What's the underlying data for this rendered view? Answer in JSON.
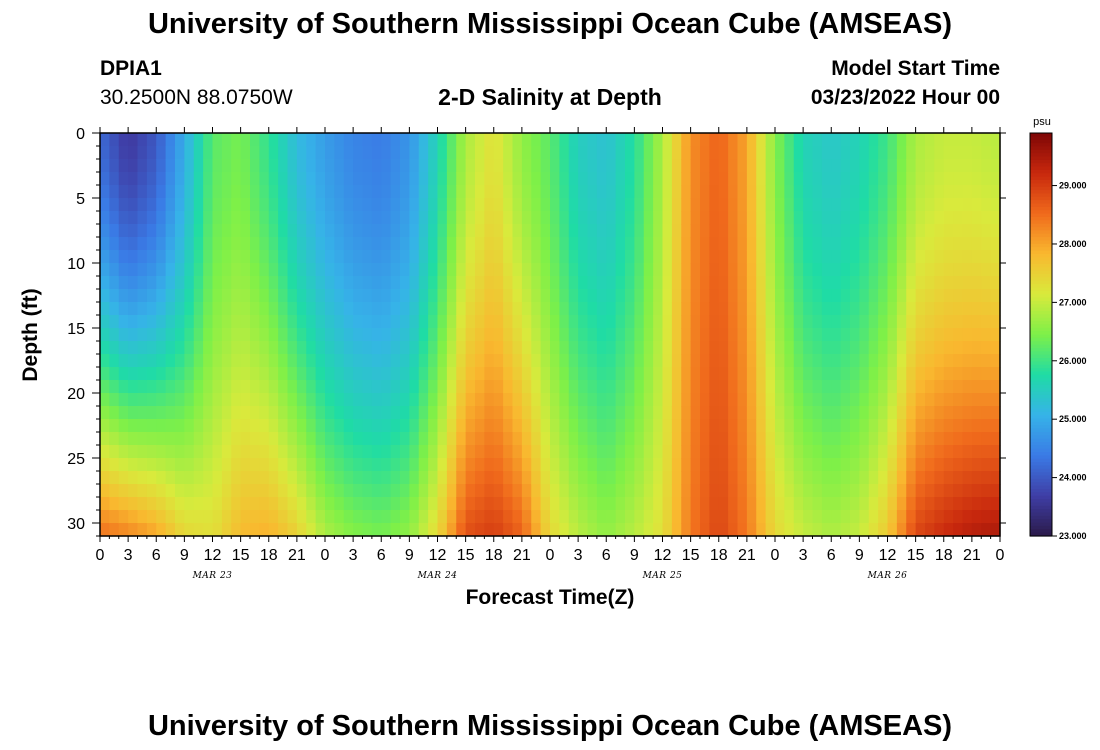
{
  "header": {
    "title": "University of Southern Mississippi Ocean Cube (AMSEAS)",
    "station_id": "DPIA1",
    "coords": "30.2500N  88.0750W",
    "chart_title": "2-D Salinity at Depth",
    "model_label": "Model Start Time",
    "model_time": "03/23/2022 Hour 00",
    "footer_title": "University of Southern Mississippi Ocean Cube (AMSEAS)"
  },
  "colors": {
    "scale": [
      "#2b1a4a",
      "#3f3ea6",
      "#3a7be6",
      "#36b3e8",
      "#1fdca5",
      "#7ef048",
      "#d9ea3c",
      "#f9b82f",
      "#f06a1c",
      "#c8280d",
      "#7e0606"
    ]
  },
  "chart_data": {
    "type": "heatmap",
    "title": "2-D Salinity at Depth",
    "xlabel": "Forecast Time(Z)",
    "ylabel": "Depth (ft)",
    "units": "psu",
    "xlim": [
      0,
      96
    ],
    "ylim": [
      0,
      31
    ],
    "x_tick_labels": [
      "0",
      "3",
      "6",
      "9",
      "12",
      "15",
      "18",
      "21",
      "0",
      "3",
      "6",
      "9",
      "12",
      "15",
      "18",
      "21",
      "0",
      "3",
      "6",
      "9",
      "12",
      "15",
      "18",
      "21",
      "0",
      "3",
      "6",
      "9",
      "12",
      "15",
      "18",
      "21",
      "0"
    ],
    "y_ticks": [
      0,
      5,
      10,
      15,
      20,
      25,
      30
    ],
    "date_labels": [
      {
        "label": "MAR 23",
        "hour": 12
      },
      {
        "label": "MAR 24",
        "hour": 36
      },
      {
        "label": "MAR 25",
        "hour": 60
      },
      {
        "label": "MAR 26",
        "hour": 84
      }
    ],
    "colorbar": {
      "min": 23.0,
      "max": 29.9,
      "ticks": [
        "23.000",
        "24.000",
        "25.000",
        "26.000",
        "27.000",
        "28.000",
        "29.000"
      ],
      "units": "psu"
    },
    "profiles": [
      {
        "hour": 0,
        "surface": 24.2,
        "bottom": 28.5
      },
      {
        "hour": 3,
        "surface": 23.6,
        "bottom": 28.3
      },
      {
        "hour": 6,
        "surface": 24.0,
        "bottom": 28.0
      },
      {
        "hour": 9,
        "surface": 25.0,
        "bottom": 27.4
      },
      {
        "hour": 12,
        "surface": 26.2,
        "bottom": 27.3
      },
      {
        "hour": 15,
        "surface": 26.4,
        "bottom": 27.8
      },
      {
        "hour": 18,
        "surface": 25.9,
        "bottom": 27.9
      },
      {
        "hour": 21,
        "surface": 25.2,
        "bottom": 27.5
      },
      {
        "hour": 24,
        "surface": 24.8,
        "bottom": 26.8
      },
      {
        "hour": 27,
        "surface": 24.5,
        "bottom": 26.5
      },
      {
        "hour": 30,
        "surface": 24.4,
        "bottom": 26.4
      },
      {
        "hour": 33,
        "surface": 24.7,
        "bottom": 26.6
      },
      {
        "hour": 36,
        "surface": 25.6,
        "bottom": 27.4
      },
      {
        "hour": 39,
        "surface": 26.8,
        "bottom": 28.8
      },
      {
        "hour": 42,
        "surface": 27.3,
        "bottom": 29.0
      },
      {
        "hour": 45,
        "surface": 26.6,
        "bottom": 28.6
      },
      {
        "hour": 48,
        "surface": 26.2,
        "bottom": 27.4
      },
      {
        "hour": 51,
        "surface": 25.5,
        "bottom": 26.9
      },
      {
        "hour": 54,
        "surface": 25.3,
        "bottom": 26.6
      },
      {
        "hour": 57,
        "surface": 25.8,
        "bottom": 26.9
      },
      {
        "hour": 60,
        "surface": 26.8,
        "bottom": 27.3
      },
      {
        "hour": 63,
        "surface": 28.2,
        "bottom": 28.4
      },
      {
        "hour": 66,
        "surface": 28.6,
        "bottom": 28.9
      },
      {
        "hour": 69,
        "surface": 28.0,
        "bottom": 28.4
      },
      {
        "hour": 72,
        "surface": 26.5,
        "bottom": 27.4
      },
      {
        "hour": 75,
        "surface": 25.6,
        "bottom": 27.0
      },
      {
        "hour": 78,
        "surface": 25.4,
        "bottom": 26.8
      },
      {
        "hour": 81,
        "surface": 25.6,
        "bottom": 27.0
      },
      {
        "hour": 84,
        "surface": 26.0,
        "bottom": 27.6
      },
      {
        "hour": 87,
        "surface": 26.8,
        "bottom": 28.9
      },
      {
        "hour": 90,
        "surface": 27.0,
        "bottom": 29.2
      },
      {
        "hour": 93,
        "surface": 27.0,
        "bottom": 29.4
      },
      {
        "hour": 96,
        "surface": 26.9,
        "bottom": 29.5
      }
    ]
  }
}
